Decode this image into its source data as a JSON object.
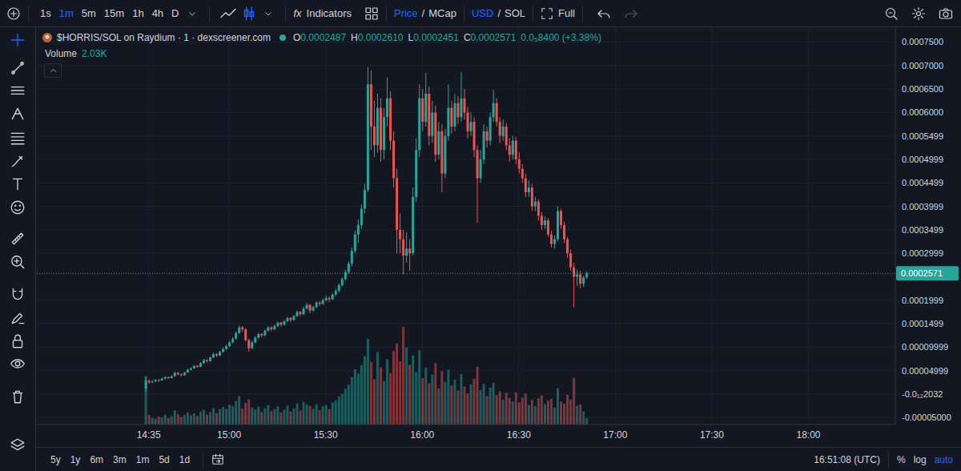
{
  "toolbar": {
    "intervals": [
      "1s",
      "1m",
      "5m",
      "15m",
      "1h",
      "4h",
      "D"
    ],
    "active_interval": "1m",
    "indicators_icon": "fx",
    "indicators": "Indicators",
    "price": "Price",
    "separator": "/",
    "mcap": "MCap",
    "usd": "USD",
    "sol": "SOL",
    "full": "Full"
  },
  "legend_header": {
    "symbol": "$HORRIS/SOL on Raydium · 1 · dexscreener.com",
    "open_label": "O",
    "open": "0.0002487",
    "high_label": "H",
    "high": "0.0002610",
    "low_label": "L",
    "low": "0.0002451",
    "close_label": "C",
    "close": "0.0002571",
    "change": "0.0₅8400 (+3.38%)",
    "volume_label": "Volume",
    "volume": "2.03K"
  },
  "price_tag": "0.0002571",
  "bottom_bar": {
    "ranges": [
      "5y",
      "1y",
      "6m",
      "3m",
      "1m",
      "5d",
      "1d"
    ],
    "clock": "16:51:08 (UTC)",
    "percent_button": "%",
    "log_button": "log",
    "auto_button": "auto"
  },
  "chart_data": {
    "type": "candlestick",
    "grid": true,
    "x": [
      874,
      875,
      876,
      877,
      878,
      879,
      880,
      881,
      882,
      883,
      884,
      885,
      886,
      887,
      888,
      889,
      890,
      891,
      892,
      893,
      894,
      895,
      896,
      897,
      898,
      899,
      900,
      901,
      902,
      903,
      904,
      905,
      906,
      907,
      908,
      909,
      910,
      911,
      912,
      913,
      914,
      915,
      916,
      917,
      918,
      919,
      920,
      921,
      922,
      923,
      924,
      925,
      926,
      927,
      928,
      929,
      930,
      931,
      932,
      933,
      934,
      935,
      936,
      937,
      938,
      939,
      940,
      941,
      942,
      943,
      944,
      945,
      946,
      947,
      948,
      949,
      950,
      951,
      952,
      953,
      954,
      955,
      956,
      957,
      958,
      959,
      960,
      961,
      962,
      963,
      964,
      965,
      966,
      967,
      968,
      969,
      970,
      971,
      972,
      973,
      974,
      975,
      976,
      977,
      978,
      979,
      980,
      981,
      982,
      983,
      984,
      985,
      986,
      987,
      988,
      989,
      990,
      991,
      992,
      993,
      994,
      995,
      996,
      997,
      998,
      999,
      1000,
      1001,
      1002,
      1003,
      1004,
      1005,
      1006,
      1007,
      1008,
      1009,
      1010,
      1011
    ],
    "open": [
      1.2e-05,
      2.8e-05,
      2.5e-05,
      2.7e-05,
      3e-05,
      2.9e-05,
      3.3e-05,
      3.6e-05,
      3.4e-05,
      3.8e-05,
      4.5e-05,
      4.2e-05,
      4e-05,
      4.6e-05,
      5.2e-05,
      5.5e-05,
      6e-05,
      5.8e-05,
      6.6e-05,
      7.2e-05,
      7e-05,
      7.8e-05,
      8.5e-05,
      8.2e-05,
      9e-05,
      9.6e-05,
      0.000102,
      0.00011,
      0.000118,
      0.00013,
      0.000142,
      0.000138,
      0.000115,
      9.8e-05,
      0.00011,
      0.00012,
      0.000128,
      0.000125,
      0.000135,
      0.000142,
      0.000138,
      0.000145,
      0.000152,
      0.000148,
      0.000155,
      0.000162,
      0.000158,
      0.000166,
      0.000175,
      0.00017,
      0.000182,
      0.00019,
      0.000178,
      0.000185,
      0.000195,
      0.000192,
      0.0002,
      0.000205,
      0.000202,
      0.000212,
      0.00022,
      0.000232,
      0.000245,
      0.00026,
      0.000278,
      0.000305,
      0.00034,
      0.00036,
      0.000395,
      0.000435,
      0.00066,
      0.00057,
      0.00053,
      0.00061,
      0.00052,
      0.00059,
      0.00063,
      0.00054,
      0.00046,
      0.00035,
      0.00033,
      0.000295,
      0.00031,
      0.0003,
      0.00042,
      0.00052,
      0.00063,
      0.00058,
      0.00064,
      0.00055,
      0.0006,
      0.00051,
      0.00056,
      0.00047,
      0.00055,
      0.00061,
      0.00057,
      0.00062,
      0.00059,
      0.00063,
      0.0006,
      0.00056,
      0.00058,
      0.00052,
      0.00046,
      0.0005,
      0.00056,
      0.00054,
      0.00059,
      0.00062,
      0.00058,
      0.00055,
      0.00057,
      0.00053,
      0.00051,
      0.00054,
      0.0005,
      0.00048,
      0.00046,
      0.00043,
      0.00044,
      0.0004,
      0.00041,
      0.00038,
      0.00036,
      0.00037,
      0.00034,
      0.00032,
      0.00033,
      0.00039,
      0.00036,
      0.00033,
      0.0003,
      0.00027,
      0.00025,
      0.000255,
      0.000235,
      0.0002487
    ],
    "high": [
      3.6e-05,
      3.1e-05,
      3e-05,
      3.2e-05,
      3.2e-05,
      3.5e-05,
      3.8e-05,
      3.7e-05,
      4e-05,
      4.8e-05,
      4.7e-05,
      4.4e-05,
      4.8e-05,
      5.4e-05,
      5.7e-05,
      6.2e-05,
      6.2e-05,
      6.8e-05,
      7.5e-05,
      7.4e-05,
      8e-05,
      8.8e-05,
      8.7e-05,
      9.2e-05,
      9.9e-05,
      0.000105,
      0.000113,
      0.000121,
      0.000133,
      0.000146,
      0.000145,
      0.00014,
      0.000118,
      0.000113,
      0.000123,
      0.000131,
      0.00013,
      0.000138,
      0.000145,
      0.000144,
      0.000148,
      0.000155,
      0.000154,
      0.000158,
      0.000165,
      0.000164,
      0.000169,
      0.000178,
      0.000177,
      0.000186,
      0.000194,
      0.000192,
      0.000188,
      0.000198,
      0.000198,
      0.000204,
      0.00021,
      0.000207,
      0.000215,
      0.000224,
      0.000236,
      0.000249,
      0.000265,
      0.000283,
      0.000312,
      0.000348,
      0.000372,
      0.000405,
      0.000448,
      0.000697,
      0.00069,
      0.000625,
      0.00064,
      0.00063,
      0.00061,
      0.000675,
      0.000645,
      0.00056,
      0.00048,
      0.000385,
      0.00035,
      0.000345,
      0.00033,
      0.00044,
      0.000545,
      0.00066,
      0.00065,
      0.000685,
      0.000655,
      0.000625,
      0.000615,
      0.00058,
      0.000575,
      0.000565,
      0.00066,
      0.000625,
      0.00064,
      0.000635,
      0.000686,
      0.00065,
      0.000612,
      0.0006,
      0.00059,
      0.00053,
      0.00052,
      0.000575,
      0.00057,
      0.0006,
      0.000648,
      0.00063,
      0.00059,
      0.000585,
      0.000578,
      0.000545,
      0.00055,
      0.000548,
      0.000515,
      0.00049,
      0.00047,
      0.000455,
      0.000448,
      0.00042,
      0.000415,
      0.000388,
      0.000378,
      0.000375,
      0.000348,
      0.000338,
      0.0004,
      0.000395,
      0.000368,
      0.000335,
      0.000308,
      0.00028,
      0.000265,
      0.000262,
      0.000252,
      0.000261
    ],
    "low": [
      5e-06,
      2.2e-05,
      2.3e-05,
      2.5e-05,
      2.6e-05,
      2.8e-05,
      3.1e-05,
      3.2e-05,
      3.3e-05,
      3.7e-05,
      4e-05,
      3.8e-05,
      3.9e-05,
      4.5e-05,
      5e-05,
      5.4e-05,
      5.6e-05,
      5.7e-05,
      6.4e-05,
      6.7e-05,
      6.9e-05,
      7.7e-05,
      7.9e-05,
      8.1e-05,
      8.8e-05,
      9.4e-05,
      0.0001,
      0.000108,
      0.000116,
      0.000128,
      0.000133,
      0.000112,
      9e-05,
      9.6e-05,
      0.000108,
      0.000118,
      0.000121,
      0.000123,
      0.000133,
      0.000134,
      0.000136,
      0.000143,
      0.000144,
      0.000146,
      0.000153,
      0.000154,
      0.000156,
      0.000164,
      0.000166,
      0.000168,
      0.00018,
      0.000172,
      0.000176,
      0.000183,
      0.000188,
      0.00019,
      0.000197,
      0.000196,
      0.0002,
      0.000209,
      0.000217,
      0.000229,
      0.000241,
      0.000256,
      0.000272,
      0.0003,
      0.000322,
      0.000352,
      0.000385,
      0.00043,
      0.00052,
      0.000505,
      0.000515,
      0.000495,
      0.0005,
      0.00057,
      0.00052,
      0.00044,
      0.0003,
      0.0003,
      0.000255,
      0.00028,
      0.000262,
      0.000295,
      0.00041,
      0.000505,
      0.00056,
      0.00057,
      0.00053,
      0.000535,
      0.000495,
      0.0005,
      0.00043,
      0.00046,
      0.00054,
      0.000555,
      0.00056,
      0.000575,
      0.00058,
      0.000585,
      0.000545,
      0.00055,
      0.000505,
      0.000365,
      0.00045,
      0.00049,
      0.000525,
      0.00053,
      0.00058,
      0.00057,
      0.000535,
      0.00054,
      0.00052,
      0.000495,
      0.0005,
      0.00049,
      0.00047,
      0.00045,
      0.00042,
      0.00042,
      0.00039,
      0.00039,
      0.00037,
      0.00035,
      0.000352,
      0.000335,
      0.000312,
      0.00031,
      0.000325,
      0.000352,
      0.000322,
      0.00029,
      0.000262,
      0.000185,
      0.00023,
      0.000225,
      0.000228,
      0.0002451
    ],
    "close": [
      2.8e-05,
      2.5e-05,
      2.7e-05,
      3e-05,
      2.9e-05,
      3.3e-05,
      3.6e-05,
      3.4e-05,
      3.8e-05,
      4.5e-05,
      4.2e-05,
      4e-05,
      4.6e-05,
      5.2e-05,
      5.5e-05,
      6e-05,
      5.8e-05,
      6.6e-05,
      7.2e-05,
      7e-05,
      7.8e-05,
      8.5e-05,
      8.2e-05,
      9e-05,
      9.6e-05,
      0.000102,
      0.00011,
      0.000118,
      0.00013,
      0.000142,
      0.000138,
      0.000115,
      9.8e-05,
      0.00011,
      0.00012,
      0.000128,
      0.000125,
      0.000135,
      0.000142,
      0.000138,
      0.000145,
      0.000152,
      0.000148,
      0.000155,
      0.000162,
      0.000158,
      0.000166,
      0.000175,
      0.00017,
      0.000182,
      0.00019,
      0.000178,
      0.000185,
      0.000195,
      0.000192,
      0.0002,
      0.000205,
      0.000202,
      0.000212,
      0.00022,
      0.000232,
      0.000245,
      0.00026,
      0.000278,
      0.000305,
      0.00034,
      0.00036,
      0.000395,
      0.000435,
      0.00066,
      0.00057,
      0.00053,
      0.00061,
      0.00052,
      0.00059,
      0.00063,
      0.00054,
      0.00046,
      0.00035,
      0.00033,
      0.000295,
      0.00031,
      0.0003,
      0.00042,
      0.00052,
      0.00063,
      0.00058,
      0.00064,
      0.00055,
      0.0006,
      0.00051,
      0.00056,
      0.00047,
      0.00055,
      0.00061,
      0.00057,
      0.00062,
      0.00059,
      0.00063,
      0.0006,
      0.00056,
      0.00058,
      0.00052,
      0.00046,
      0.0005,
      0.00056,
      0.00054,
      0.00059,
      0.00062,
      0.00058,
      0.00055,
      0.00057,
      0.00053,
      0.00051,
      0.00054,
      0.0005,
      0.00048,
      0.00046,
      0.00043,
      0.00044,
      0.0004,
      0.00041,
      0.00038,
      0.00036,
      0.00037,
      0.00034,
      0.00032,
      0.00033,
      0.00039,
      0.00036,
      0.00033,
      0.0003,
      0.00027,
      0.00025,
      0.000255,
      0.000235,
      0.0002487,
      0.0002571
    ],
    "volume": [
      15200,
      3000,
      2100,
      1800,
      2500,
      2200,
      3100,
      2000,
      2600,
      4500,
      3200,
      2400,
      3000,
      3800,
      2900,
      3500,
      2700,
      4000,
      4600,
      3100,
      3900,
      5200,
      3600,
      4800,
      5500,
      4900,
      6200,
      5800,
      7400,
      8900,
      5100,
      6800,
      7900,
      5300,
      4700,
      5600,
      3900,
      5100,
      6000,
      4200,
      4900,
      5700,
      3800,
      4600,
      5900,
      4100,
      5000,
      6600,
      4400,
      7100,
      6300,
      5800,
      4900,
      6400,
      4500,
      5700,
      6100,
      4800,
      6900,
      7500,
      8800,
      9600,
      11200,
      12500,
      14800,
      17300,
      15900,
      18600,
      21400,
      26800,
      19500,
      14200,
      22700,
      17900,
      13600,
      20400,
      16100,
      22900,
      25300,
      19800,
      30500,
      24100,
      18700,
      21600,
      16400,
      23200,
      14500,
      17800,
      12900,
      15600,
      19200,
      11300,
      16700,
      13400,
      17100,
      12200,
      14000,
      10600,
      15800,
      11900,
      9700,
      12600,
      14300,
      18100,
      10800,
      12700,
      8900,
      11500,
      13100,
      9200,
      10400,
      7800,
      9900,
      8300,
      7200,
      10100,
      6900,
      8400,
      9700,
      6100,
      7700,
      5800,
      8200,
      9100,
      6400,
      7600,
      8000,
      5300,
      11400,
      7200,
      6500,
      9300,
      7800,
      14600,
      5900,
      6300,
      4100,
      2030
    ],
    "xlim": [
      840,
      1107
    ],
    "xticks": [
      {
        "value": 875,
        "label": "14:35"
      },
      {
        "value": 900,
        "label": "15:00"
      },
      {
        "value": 930,
        "label": "15:30"
      },
      {
        "value": 960,
        "label": "16:00"
      },
      {
        "value": 990,
        "label": "16:30"
      },
      {
        "value": 1020,
        "label": "17:00"
      },
      {
        "value": 1050,
        "label": "17:30"
      },
      {
        "value": 1080,
        "label": "18:00"
      }
    ],
    "ylim": [
      -6.5e-05,
      0.00078
    ],
    "yticks": [
      {
        "value": 0.00075,
        "label": "0.0007500"
      },
      {
        "value": 0.0007,
        "label": "0.0007000"
      },
      {
        "value": 0.00065,
        "label": "0.0006500"
      },
      {
        "value": 0.0006,
        "label": "0.0006000"
      },
      {
        "value": 0.0005499,
        "label": "0.0005499"
      },
      {
        "value": 0.0004999,
        "label": "0.0004999"
      },
      {
        "value": 0.0004499,
        "label": "0.0004499"
      },
      {
        "value": 0.0003999,
        "label": "0.0003999"
      },
      {
        "value": 0.0003499,
        "label": "0.0003499"
      },
      {
        "value": 0.0002999,
        "label": "0.0002999"
      },
      {
        "value": 0.0001999,
        "label": "0.0001999"
      },
      {
        "value": 0.0001499,
        "label": "0.0001499"
      },
      {
        "value": 9.999e-05,
        "label": "0.00009999"
      },
      {
        "value": 4.999e-05,
        "label": "0.00004999"
      },
      {
        "value": -2.032e-13,
        "label": "-0.0₁₂2032"
      },
      {
        "value": -5e-05,
        "label": "-0.00005000"
      }
    ],
    "y2lim": [
      0,
      124000
    ]
  }
}
